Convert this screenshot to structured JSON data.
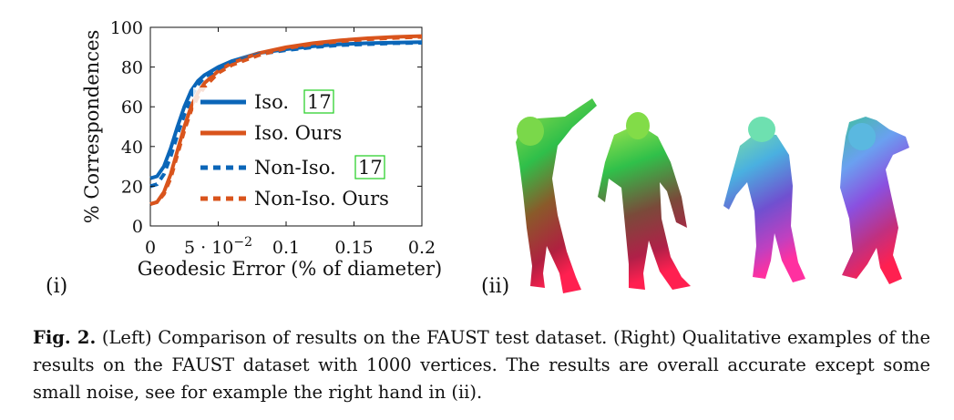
{
  "figure": {
    "panel_left_label": "(i)",
    "panel_right_label": "(ii)"
  },
  "chart_data": {
    "type": "line",
    "xlabel": "Geodesic Error (% of diameter)",
    "ylabel": "% Correspondences",
    "xlim": [
      0,
      0.2
    ],
    "ylim": [
      0,
      100
    ],
    "x_ticks": [
      {
        "value": 0,
        "label": "0"
      },
      {
        "value": 0.05,
        "label": "5 · 10",
        "exp": "−2"
      },
      {
        "value": 0.1,
        "label": "0.1"
      },
      {
        "value": 0.15,
        "label": "0.15"
      },
      {
        "value": 0.2,
        "label": "0.2"
      }
    ],
    "y_ticks": [
      {
        "value": 0,
        "label": "0"
      },
      {
        "value": 20,
        "label": "20"
      },
      {
        "value": 40,
        "label": "40"
      },
      {
        "value": 60,
        "label": "60"
      },
      {
        "value": 80,
        "label": "80"
      },
      {
        "value": 100,
        "label": "100"
      }
    ],
    "grid": false,
    "legend_position": "right",
    "series": [
      {
        "name": "Iso.",
        "cite": "17",
        "color": "#0b66b8",
        "dash": "solid",
        "x": [
          0,
          0.005,
          0.01,
          0.015,
          0.02,
          0.025,
          0.03,
          0.035,
          0.04,
          0.05,
          0.06,
          0.08,
          0.1,
          0.12,
          0.14,
          0.16,
          0.18,
          0.2
        ],
        "y": [
          24,
          25,
          30,
          39,
          50,
          60,
          68,
          73,
          76,
          80,
          83,
          87,
          89,
          90.5,
          91.5,
          92,
          92.3,
          92.5
        ]
      },
      {
        "name": "Iso. Ours",
        "color": "#d9541c",
        "dash": "solid",
        "x": [
          0,
          0.005,
          0.01,
          0.015,
          0.02,
          0.025,
          0.03,
          0.035,
          0.04,
          0.05,
          0.06,
          0.08,
          0.1,
          0.12,
          0.14,
          0.16,
          0.18,
          0.2
        ],
        "y": [
          11,
          12,
          17,
          26,
          38,
          50,
          60,
          67,
          72,
          78,
          82,
          87,
          90,
          92,
          93.5,
          94.5,
          95.2,
          95.6
        ]
      },
      {
        "name": "Non-Iso.",
        "cite": "17",
        "color": "#0b66b8",
        "dash": "dashed",
        "x": [
          0,
          0.005,
          0.01,
          0.015,
          0.02,
          0.025,
          0.03,
          0.035,
          0.04,
          0.05,
          0.06,
          0.08,
          0.1,
          0.12,
          0.14,
          0.16,
          0.18,
          0.2
        ],
        "y": [
          20,
          21,
          26,
          35,
          46,
          56,
          65,
          71,
          75,
          79,
          82,
          86.5,
          88.5,
          90,
          91,
          91.5,
          92,
          92.2
        ]
      },
      {
        "name": "Non-Iso. Ours",
        "color": "#d9541c",
        "dash": "dashed",
        "x": [
          0,
          0.005,
          0.01,
          0.015,
          0.02,
          0.025,
          0.03,
          0.035,
          0.04,
          0.05,
          0.06,
          0.08,
          0.1,
          0.12,
          0.14,
          0.16,
          0.18,
          0.2
        ],
        "y": [
          11,
          12,
          16,
          24,
          36,
          48,
          58,
          65,
          70,
          77,
          81,
          86,
          89.5,
          91.5,
          93,
          94,
          94.7,
          95.2
        ]
      }
    ]
  },
  "caption": {
    "label": "Fig. 2.",
    "text": " (Left) Comparison of results on the FAUST test dataset. (Right) Qualitative examples of the results on the FAUST dataset with 1000 vertices. The results are overall accurate except some small noise, see for example the right hand in (ii)."
  }
}
